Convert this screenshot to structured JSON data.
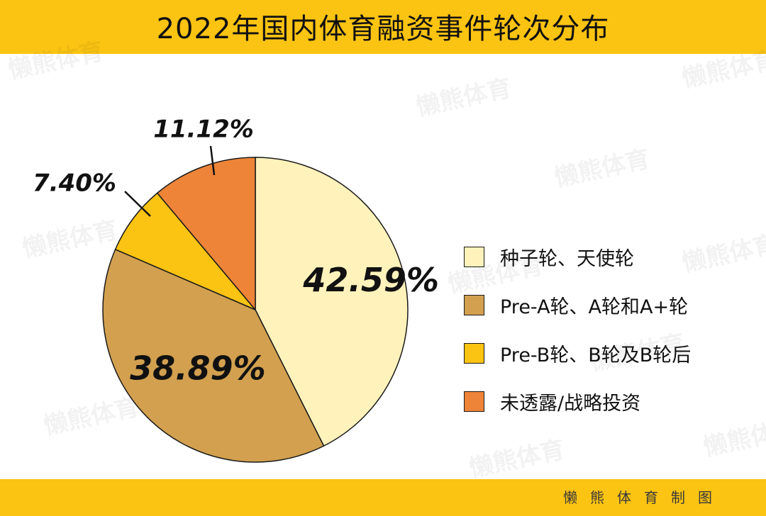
{
  "title": "2022年国内体育融资事件轮次分布",
  "credit": "懒熊体育制图",
  "watermark_text": "懒熊体育",
  "colors": {
    "header": "#fbc312",
    "slice_outline": "#1a1a1a"
  },
  "chart_data": {
    "type": "pie",
    "title": "2022年国内体育融资事件轮次分布",
    "slices": [
      {
        "label": "种子轮、天使轮",
        "value": 42.59,
        "display": "42.59%",
        "color": "#fff2bb"
      },
      {
        "label": "Pre-A轮、A轮和A+轮",
        "value": 38.89,
        "display": "38.89%",
        "color": "#d2a04f"
      },
      {
        "label": "Pre-B轮、B轮及B轮后",
        "value": 7.4,
        "display": "7.40%",
        "color": "#fbc312"
      },
      {
        "label": "未透露/战略投资",
        "value": 11.12,
        "display": "11.12%",
        "color": "#ed8438"
      }
    ],
    "start_angle": "12 o'clock",
    "direction": "clockwise",
    "legend_position": "right"
  }
}
